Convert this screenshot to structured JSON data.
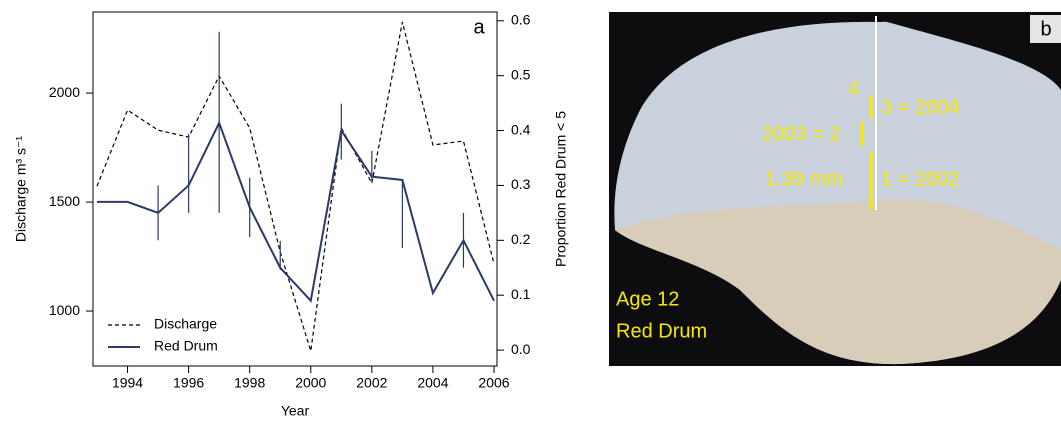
{
  "chart_data": {
    "type": "line",
    "x_label": "Year",
    "y_label": "Discharge m³ s⁻¹",
    "y2_label": "Proportion Red Drum < 5",
    "panel_label": "a",
    "x": [
      1993,
      1994,
      1995,
      1996,
      1997,
      1998,
      1999,
      2000,
      2001,
      2002,
      2003,
      2004,
      2005,
      2006
    ],
    "series": [
      {
        "name": "Discharge",
        "color": "#000000",
        "dash": true,
        "values": [
          1573,
          1922,
          1830,
          1798,
          2078,
          1840,
          1271,
          817,
          1840,
          1587,
          2326,
          1762,
          1780,
          1216
        ]
      },
      {
        "name": "Red Drum",
        "color": "#2b3a67",
        "axis": "y2",
        "values": [
          0.27,
          0.27,
          0.25,
          0.3,
          0.414,
          0.26,
          0.15,
          0.09,
          0.4,
          0.316,
          0.31,
          0.104,
          0.2,
          0.09
        ],
        "lower": [
          null,
          null,
          0.2,
          0.25,
          0.25,
          0.206,
          0.146,
          null,
          0.347,
          0.305,
          0.186,
          null,
          0.15,
          null
        ],
        "upper": [
          null,
          null,
          0.3,
          0.394,
          0.58,
          0.314,
          0.199,
          null,
          0.449,
          0.363,
          0.31,
          null,
          0.25,
          null
        ]
      }
    ],
    "xlim": [
      1993,
      2006
    ],
    "xticks": [
      1994,
      1996,
      1998,
      2000,
      2002,
      2004,
      2006
    ],
    "ylim": [
      748,
      2372
    ],
    "yticks": [
      1000,
      1500,
      2000
    ],
    "y2lim": [
      -0.029,
      0.616
    ],
    "y2ticks": [
      {
        "value": 0,
        "label": "0.0"
      },
      0.1,
      0.2,
      0.3,
      0.4,
      0.5,
      0.6
    ],
    "legend": "bottom-left",
    "grid": false
  },
  "image_panel": {
    "panel_label": "b",
    "annotations": [
      "4",
      "3 = 2004",
      "2003 = 2",
      "1.39 mm",
      "1 = 2002"
    ],
    "caption": [
      "Age 12",
      "Red Drum"
    ]
  }
}
